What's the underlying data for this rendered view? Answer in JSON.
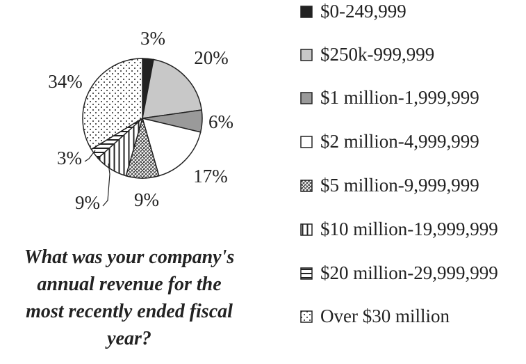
{
  "chart_data": {
    "type": "pie",
    "title": "What was your company's annual revenue for the most recently ended fiscal year?",
    "title_lines": [
      "What was your company's",
      "annual revenue for the",
      "most recently ended fiscal",
      "year?"
    ],
    "categories": [
      "$0-249,999",
      "$250k-999,999",
      "$1 million-1,999,999",
      "$2 million-4,999,999",
      "$5 million-9,999,999",
      "$10 million-19,999,999",
      "$20 million-29,999,999",
      "Over $30 million"
    ],
    "values": [
      3,
      20,
      6,
      17,
      9,
      9,
      3,
      34
    ],
    "data_labels": [
      "3%",
      "20%",
      "6%",
      "17%",
      "9%",
      "9%",
      "3%",
      "34%"
    ],
    "unit": "%",
    "legend_position": "right",
    "fills": [
      "solid-black",
      "light-gray",
      "medium-gray",
      "white",
      "diagonal-crosshatch",
      "vertical-lines",
      "horizontal-lines",
      "dots"
    ],
    "colors": {
      "black": "#222222",
      "light_gray": "#c8c8c8",
      "medium_gray": "#9a9a9a",
      "white": "#ffffff"
    }
  }
}
